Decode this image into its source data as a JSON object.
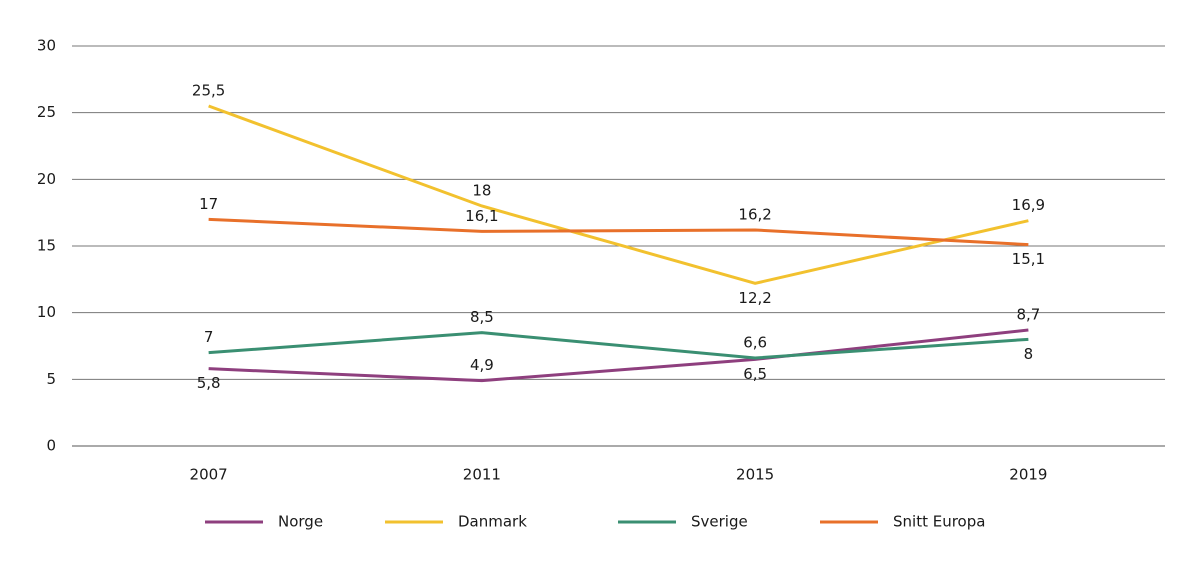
{
  "chart_data": {
    "type": "line",
    "categories": [
      "2007",
      "2011",
      "2015",
      "2019"
    ],
    "series": [
      {
        "name": "Norge",
        "color": "#8e3f7e",
        "values": [
          5.8,
          4.9,
          6.5,
          8.7
        ],
        "value_labels": [
          "5,8",
          "4,9",
          "6,5",
          "8,7"
        ]
      },
      {
        "name": "Danmark",
        "color": "#f2c12e",
        "values": [
          25.5,
          18,
          12.2,
          16.9
        ],
        "value_labels": [
          "25,5",
          "18",
          "12,2",
          "16,9"
        ]
      },
      {
        "name": "Sverige",
        "color": "#3a8f72",
        "values": [
          7,
          8.5,
          6.6,
          8
        ],
        "value_labels": [
          "7",
          "8,5",
          "6,6",
          "8"
        ]
      },
      {
        "name": "Snitt Europa",
        "color": "#e8702a",
        "values": [
          17,
          16.1,
          16.2,
          15.1
        ],
        "value_labels": [
          "17",
          "16,1",
          "16,2",
          "15,1"
        ]
      }
    ],
    "ylim": [
      0,
      30
    ],
    "yticks": [
      0,
      5,
      10,
      15,
      20,
      25,
      30
    ],
    "grid": true,
    "legend": "bottom"
  }
}
